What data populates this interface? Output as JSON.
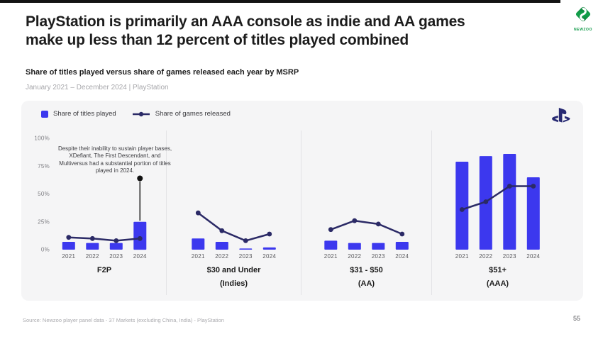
{
  "page": {
    "title_line1": "PlayStation is primarily an AAA console as indie and AA games",
    "title_line2": "make up less than 12 percent of titles played combined",
    "subtitle": "Share of titles played versus share of games released each year by MSRP",
    "period": "January 2021 – December 2024 | PlayStation",
    "source": "Source: Newzoo player panel data - 37 Markets (excluding China, India) - PlayStation",
    "page_number": "55",
    "brand": "NEWZOO"
  },
  "legend": {
    "bars_label": "Share of titles played",
    "line_label": "Share of games released"
  },
  "colors": {
    "bar": "#3c38ee",
    "line": "#2b2a66",
    "annotation": "#111111",
    "tick": "#7f7f84",
    "year": "#58585c",
    "card_bg": "#f5f5f6",
    "brand_green": "#109a48",
    "ps_navy": "#282a73"
  },
  "chart_data": {
    "type": "bar+line",
    "title": "Share of titles played versus share of games released each year by MSRP",
    "subtitle": "January 2021 – December 2024 | PlayStation",
    "categories": [
      "2021",
      "2022",
      "2023",
      "2024"
    ],
    "ylim": [
      0,
      100
    ],
    "yticks": [
      {
        "label": "0%",
        "value": 0
      },
      {
        "label": "25%",
        "value": 25
      },
      {
        "label": "50%",
        "value": 50
      },
      {
        "label": "75%",
        "value": 75
      },
      {
        "label": "100%",
        "value": 100
      }
    ],
    "series_meta": [
      {
        "name": "Share of titles played",
        "type": "bar"
      },
      {
        "name": "Share of games released",
        "type": "line"
      }
    ],
    "grid": false,
    "legend_position": "top-left",
    "panels": [
      {
        "label": "F2P",
        "sublabel": "",
        "bars": [
          7,
          6,
          6,
          25
        ],
        "line": [
          11,
          10,
          8,
          10
        ],
        "annotation": {
          "text": "Despite their inability to sustain player bases, XDefiant, The First Descendant, and Multiversus had a substantial portion of titles played in 2024.",
          "category": "2024",
          "dot_value": 64,
          "line_to_value": 26
        }
      },
      {
        "label": "$30 and Under",
        "sublabel": "(Indies)",
        "bars": [
          10,
          7,
          1,
          2
        ],
        "line": [
          33,
          17,
          8,
          14
        ]
      },
      {
        "label": "$31 - $50",
        "sublabel": "(AA)",
        "bars": [
          8,
          6,
          6,
          7
        ],
        "line": [
          18,
          26,
          23,
          14
        ]
      },
      {
        "label": "$51+",
        "sublabel": "(AAA)",
        "bars": [
          79,
          84,
          86,
          65
        ],
        "line": [
          36,
          43,
          57,
          57
        ]
      }
    ]
  }
}
